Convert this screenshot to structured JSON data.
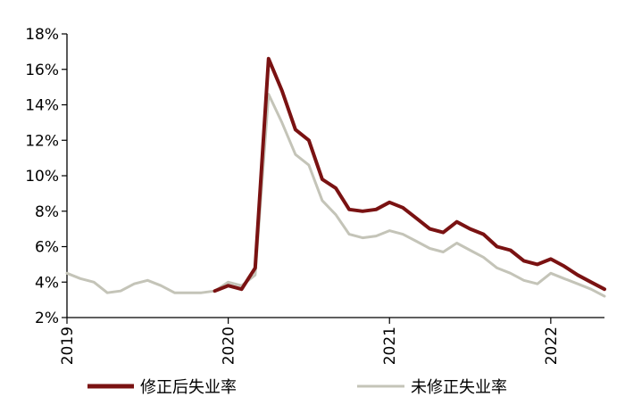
{
  "chart_data": {
    "type": "line",
    "title": "",
    "xlabel": "",
    "ylabel": "",
    "ylim": [
      2,
      18
    ],
    "y_ticks": [
      2,
      4,
      6,
      8,
      10,
      12,
      14,
      16,
      18
    ],
    "y_tick_labels": [
      "2%",
      "4%",
      "6%",
      "8%",
      "10%",
      "12%",
      "14%",
      "16%",
      "18%"
    ],
    "x_ticks": [
      2019,
      2020,
      2021,
      2022
    ],
    "x_tick_labels": [
      "2019",
      "2020",
      "2021",
      "2022"
    ],
    "x_range": [
      2019.0,
      2022.333
    ],
    "grid": false,
    "legend_position": "bottom",
    "series": [
      {
        "name": "修正后失业率",
        "color": "#7a1212",
        "x": [
          2019.917,
          2020.0,
          2020.083,
          2020.167,
          2020.25,
          2020.333,
          2020.417,
          2020.5,
          2020.583,
          2020.667,
          2020.75,
          2020.833,
          2020.917,
          2021.0,
          2021.083,
          2021.167,
          2021.25,
          2021.333,
          2021.417,
          2021.5,
          2021.583,
          2021.667,
          2021.75,
          2021.833,
          2021.917,
          2022.0,
          2022.083,
          2022.167,
          2022.25,
          2022.333
        ],
        "values": [
          3.5,
          3.8,
          3.6,
          4.8,
          16.6,
          14.8,
          12.6,
          12.0,
          9.8,
          9.3,
          8.1,
          8.0,
          8.1,
          8.5,
          8.2,
          7.6,
          7.0,
          6.8,
          7.4,
          7.0,
          6.7,
          6.0,
          5.8,
          5.2,
          5.0,
          5.3,
          4.9,
          4.4,
          4.0,
          3.6
        ]
      },
      {
        "name": "未修正失业率",
        "color": "#c4c4b8",
        "x": [
          2019.0,
          2019.083,
          2019.167,
          2019.25,
          2019.333,
          2019.417,
          2019.5,
          2019.583,
          2019.667,
          2019.75,
          2019.833,
          2019.917,
          2020.0,
          2020.083,
          2020.167,
          2020.25,
          2020.333,
          2020.417,
          2020.5,
          2020.583,
          2020.667,
          2020.75,
          2020.833,
          2020.917,
          2021.0,
          2021.083,
          2021.167,
          2021.25,
          2021.333,
          2021.417,
          2021.5,
          2021.583,
          2021.667,
          2021.75,
          2021.833,
          2021.917,
          2022.0,
          2022.083,
          2022.167,
          2022.25,
          2022.333
        ],
        "values": [
          4.5,
          4.2,
          4.0,
          3.4,
          3.5,
          3.9,
          4.1,
          3.8,
          3.4,
          3.4,
          3.4,
          3.5,
          4.0,
          3.8,
          4.4,
          14.6,
          13.0,
          11.2,
          10.6,
          8.6,
          7.8,
          6.7,
          6.5,
          6.6,
          6.9,
          6.7,
          6.3,
          5.9,
          5.7,
          6.2,
          5.8,
          5.4,
          4.8,
          4.5,
          4.1,
          3.9,
          4.5,
          4.2,
          3.9,
          3.6,
          3.2
        ]
      }
    ]
  }
}
